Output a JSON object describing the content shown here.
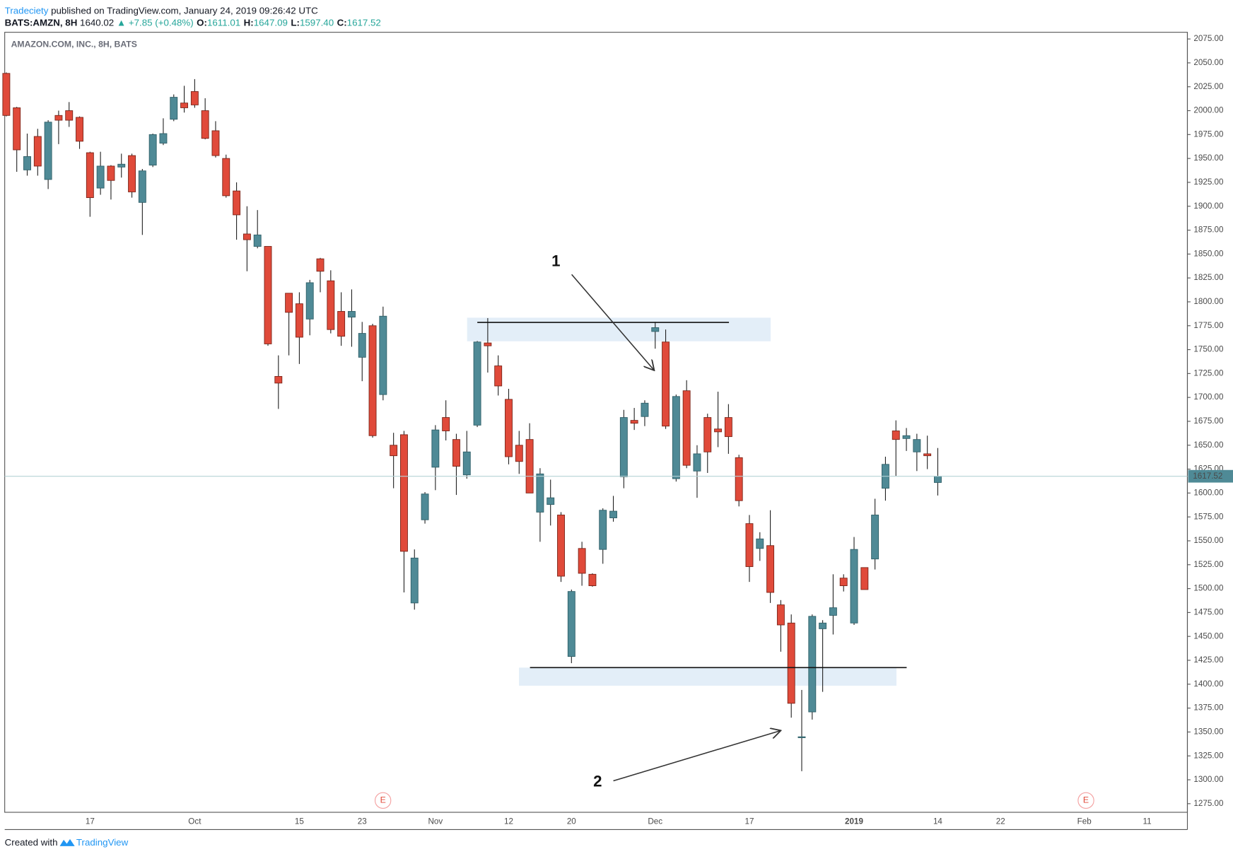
{
  "header": {
    "author": "Tradeciety",
    "published": "published on TradingView.com, January 24, 2019 09:26:42 UTC",
    "symbol": "BATS:AMZN, 8H",
    "last": "1640.02",
    "change": "+7.85 (+0.48%)",
    "ohlc": [
      {
        "label": "O:",
        "value": "1611.01"
      },
      {
        "label": "H:",
        "value": "1647.09"
      },
      {
        "label": "L:",
        "value": "1597.40"
      },
      {
        "label": "C:",
        "value": "1617.52"
      }
    ]
  },
  "footer": {
    "created": "Created with",
    "brand": "TradingView"
  },
  "chart_data": {
    "type": "candlestick",
    "title": "AMAZON.COM, INC., 8H, BATS",
    "up_color": "#4f8a96",
    "down_color": "#e04a3a",
    "grid": false,
    "annotations": [
      "1",
      "2"
    ],
    "events": [
      "E",
      "E"
    ],
    "categories": [
      null,
      null,
      null,
      null,
      null,
      null,
      null,
      null,
      "17",
      null,
      null,
      null,
      null,
      null,
      null,
      null,
      null,
      null,
      "Oct",
      null,
      null,
      null,
      null,
      null,
      null,
      null,
      null,
      null,
      "15",
      null,
      null,
      null,
      null,
      null,
      "23",
      null,
      null,
      null,
      null,
      null,
      null,
      "Nov",
      null,
      null,
      null,
      null,
      null,
      null,
      "12",
      null,
      null,
      null,
      null,
      null,
      "20",
      null,
      null,
      null,
      null,
      null,
      null,
      null,
      "Dec",
      null,
      null,
      null,
      null,
      null,
      null,
      null,
      null,
      "17",
      null,
      null,
      null,
      null,
      null,
      null,
      null,
      null,
      null,
      "2019",
      null,
      null,
      null,
      null,
      null,
      null,
      null,
      "14",
      null,
      null,
      null,
      null,
      null,
      "22",
      null,
      null,
      null,
      null,
      null,
      null,
      null,
      "Feb",
      null,
      null,
      null,
      null,
      null,
      "11",
      null,
      null,
      null
    ],
    "open": [
      2039,
      2003,
      1938,
      1973,
      1928,
      1995,
      2000,
      1993,
      1956,
      1919,
      1942,
      1941,
      1953,
      1904,
      1943,
      1966,
      1991,
      2008,
      2020,
      2000,
      1979,
      1950,
      1916,
      1871,
      1858,
      1858,
      1722,
      1809,
      1798,
      1782,
      1845,
      1822,
      1790,
      1784,
      1742,
      1775,
      1703,
      1650,
      1661,
      1485,
      1572,
      1627,
      1679,
      1656,
      1619,
      1671,
      1757,
      1733,
      1698,
      1650,
      1656,
      1580,
      1588,
      1577,
      1429,
      1542,
      1515,
      1541,
      1574,
      1617,
      1676,
      1680,
      1769,
      1758,
      1615,
      1707,
      1623,
      1679,
      1667,
      1679,
      1637,
      1568,
      1542,
      1545,
      1483,
      1464,
      1344,
      1371,
      1458,
      1472,
      1511,
      1464,
      1522,
      1531,
      1605,
      1665,
      1657,
      1643,
      1641,
      1611.01,
      null,
      null,
      null,
      null,
      null,
      null,
      null,
      null,
      null,
      null,
      null,
      null,
      null,
      null,
      null,
      null,
      null,
      null,
      null,
      null,
      null,
      null,
      null
    ],
    "high": [
      2040,
      2004,
      1976,
      1981,
      1990,
      2000,
      2009,
      1994,
      1957,
      1957,
      1943,
      1955,
      1955,
      1939,
      1976,
      1992,
      2017,
      2026,
      2033,
      2013,
      1989,
      1954,
      1925,
      1900,
      1896,
      1858,
      1744,
      1809,
      1810,
      1823,
      1846,
      1833,
      1810,
      1813,
      1779,
      1777,
      1795,
      1663,
      1665,
      1541,
      1601,
      1671,
      1697,
      1662,
      1665,
      1759,
      1783,
      1744,
      1709,
      1665,
      1673,
      1626,
      1614,
      1580,
      1499,
      1549,
      1516,
      1584,
      1597,
      1687,
      1689,
      1697,
      1779,
      1771,
      1703,
      1718,
      1650,
      1683,
      1706,
      1693,
      1640,
      1577,
      1559,
      1582,
      1488,
      1473,
      1394,
      1473,
      1467,
      1515,
      1515,
      1554,
      1522,
      1594,
      1638,
      1676,
      1668,
      1662,
      1660,
      1647.09,
      null,
      null,
      null,
      null,
      null,
      null,
      null,
      null,
      null,
      null,
      null,
      null,
      null,
      null,
      null,
      null,
      null,
      null,
      null,
      null,
      null,
      null,
      null
    ],
    "low": [
      1994,
      1936,
      1932,
      1932,
      1918,
      1965,
      1983,
      1960,
      1889,
      1912,
      1907,
      1930,
      1909,
      1870,
      1941,
      1964,
      1989,
      1998,
      2003,
      1970,
      1951,
      1909,
      1865,
      1832,
      1856,
      1754,
      1688,
      1744,
      1735,
      1765,
      1810,
      1767,
      1754,
      1753,
      1717,
      1658,
      1697,
      1605,
      1496,
      1478,
      1568,
      1603,
      1655,
      1598,
      1615,
      1669,
      1726,
      1702,
      1630,
      1620,
      1600,
      1549,
      1566,
      1507,
      1422,
      1503,
      1502,
      1526,
      1570,
      1605,
      1666,
      1670,
      1751,
      1667,
      1612,
      1626,
      1595,
      1621,
      1648,
      1641,
      1586,
      1507,
      1529,
      1485,
      1434,
      1365,
      1309,
      1363,
      1392,
      1452,
      1497,
      1462,
      1499,
      1520,
      1592,
      1618,
      1644,
      1623,
      1625,
      1597.4,
      null,
      null,
      null,
      null,
      null,
      null,
      null,
      null,
      null,
      null,
      null,
      null,
      null,
      null,
      null,
      null,
      null,
      null,
      null,
      null,
      null,
      null,
      null
    ],
    "close": [
      1995,
      1959,
      1952,
      1942,
      1988,
      1990,
      1990,
      1968,
      1909,
      1942,
      1927,
      1944,
      1915,
      1937,
      1975,
      1976,
      2014,
      2003,
      2006,
      1971,
      1953,
      1911,
      1891,
      1865,
      1870,
      1756,
      1715,
      1789,
      1763,
      1820,
      1832,
      1771,
      1764,
      1790,
      1767,
      1660,
      1785,
      1639,
      1539,
      1532,
      1599,
      1666,
      1665,
      1628,
      1643,
      1758,
      1754,
      1712,
      1638,
      1633,
      1600,
      1620,
      1595,
      1513,
      1497,
      1516,
      1503,
      1582,
      1581,
      1679,
      1673,
      1694,
      1773,
      1670,
      1701,
      1629,
      1641,
      1643,
      1664,
      1659,
      1592,
      1523,
      1552,
      1496,
      1462,
      1380,
      1345,
      1471,
      1464,
      1480,
      1503,
      1541,
      1499,
      1577,
      1630,
      1656,
      1660,
      1656,
      1639,
      1617.52,
      null,
      null,
      null,
      null,
      null,
      null,
      null,
      null,
      null,
      null,
      null,
      null,
      null,
      null,
      null,
      null,
      null,
      null,
      null,
      null,
      null,
      null,
      null
    ],
    "ylim": [
      1266,
      2082
    ],
    "yticks": [
      {
        "value": 2075,
        "label": "2075.00"
      },
      {
        "value": 2050,
        "label": "2050.00"
      },
      {
        "value": 2025,
        "label": "2025.00"
      },
      {
        "value": 2000,
        "label": "2000.00"
      },
      {
        "value": 1975,
        "label": "1975.00"
      },
      {
        "value": 1950,
        "label": "1950.00"
      },
      {
        "value": 1925,
        "label": "1925.00"
      },
      {
        "value": 1900,
        "label": "1900.00"
      },
      {
        "value": 1875,
        "label": "1875.00"
      },
      {
        "value": 1850,
        "label": "1850.00"
      },
      {
        "value": 1825,
        "label": "1825.00"
      },
      {
        "value": 1800,
        "label": "1800.00"
      },
      {
        "value": 1775,
        "label": "1775.00"
      },
      {
        "value": 1750,
        "label": "1750.00"
      },
      {
        "value": 1725,
        "label": "1725.00"
      },
      {
        "value": 1700,
        "label": "1700.00"
      },
      {
        "value": 1675,
        "label": "1675.00"
      },
      {
        "value": 1650,
        "label": "1650.00"
      },
      {
        "value": 1625,
        "label": "1625.00"
      },
      {
        "value": 1600,
        "label": "1600.00"
      },
      {
        "value": 1575,
        "label": "1575.00"
      },
      {
        "value": 1550,
        "label": "1550.00"
      },
      {
        "value": 1525,
        "label": "1525.00"
      },
      {
        "value": 1500,
        "label": "1500.00"
      },
      {
        "value": 1475,
        "label": "1475.00"
      },
      {
        "value": 1450,
        "label": "1450.00"
      },
      {
        "value": 1425,
        "label": "1425.00"
      },
      {
        "value": 1400,
        "label": "1400.00"
      },
      {
        "value": 1375,
        "label": "1375.00"
      },
      {
        "value": 1350,
        "label": "1350.00"
      },
      {
        "value": 1325,
        "label": "1325.00"
      },
      {
        "value": 1300,
        "label": "1300.00"
      },
      {
        "value": 1275,
        "label": "1275.00"
      }
    ]
  }
}
